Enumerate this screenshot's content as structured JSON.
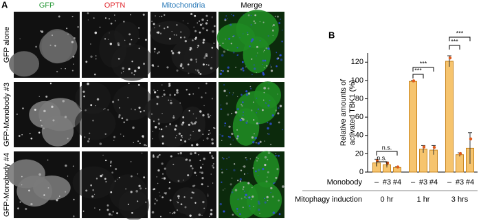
{
  "panel_a": {
    "label": "A",
    "columns": [
      "GFP",
      "OPTN",
      "Mitochondria",
      "Merge"
    ],
    "rows": [
      "GFP alone",
      "GFP-Monobody #3",
      "GFP-Monobody #4"
    ]
  },
  "chart_data": {
    "type": "bar",
    "panel_label": "B",
    "y_label_lines": [
      "Relative amounts of",
      "activated TBK1 (%)"
    ],
    "categories": [
      "–",
      "#3",
      "#4",
      "–",
      "#3",
      "#4",
      "–",
      "#3",
      "#4"
    ],
    "groups": [
      "0 hr",
      "1 hr",
      "3 hrs"
    ],
    "row_labels": [
      "Monobody",
      "Mitophagy induction"
    ],
    "values": [
      10,
      8,
      5,
      99,
      25,
      24,
      121,
      19,
      26
    ],
    "errors": [
      4,
      3,
      1,
      1,
      4,
      5,
      6,
      2,
      17
    ],
    "color": "#f6c46e",
    "ylim": [
      0,
      130
    ],
    "yticks": [
      0,
      20,
      40,
      60,
      80,
      100,
      120
    ],
    "annotations": [
      "n.s.",
      "n.s.",
      "***",
      "***",
      "***",
      "***"
    ]
  }
}
